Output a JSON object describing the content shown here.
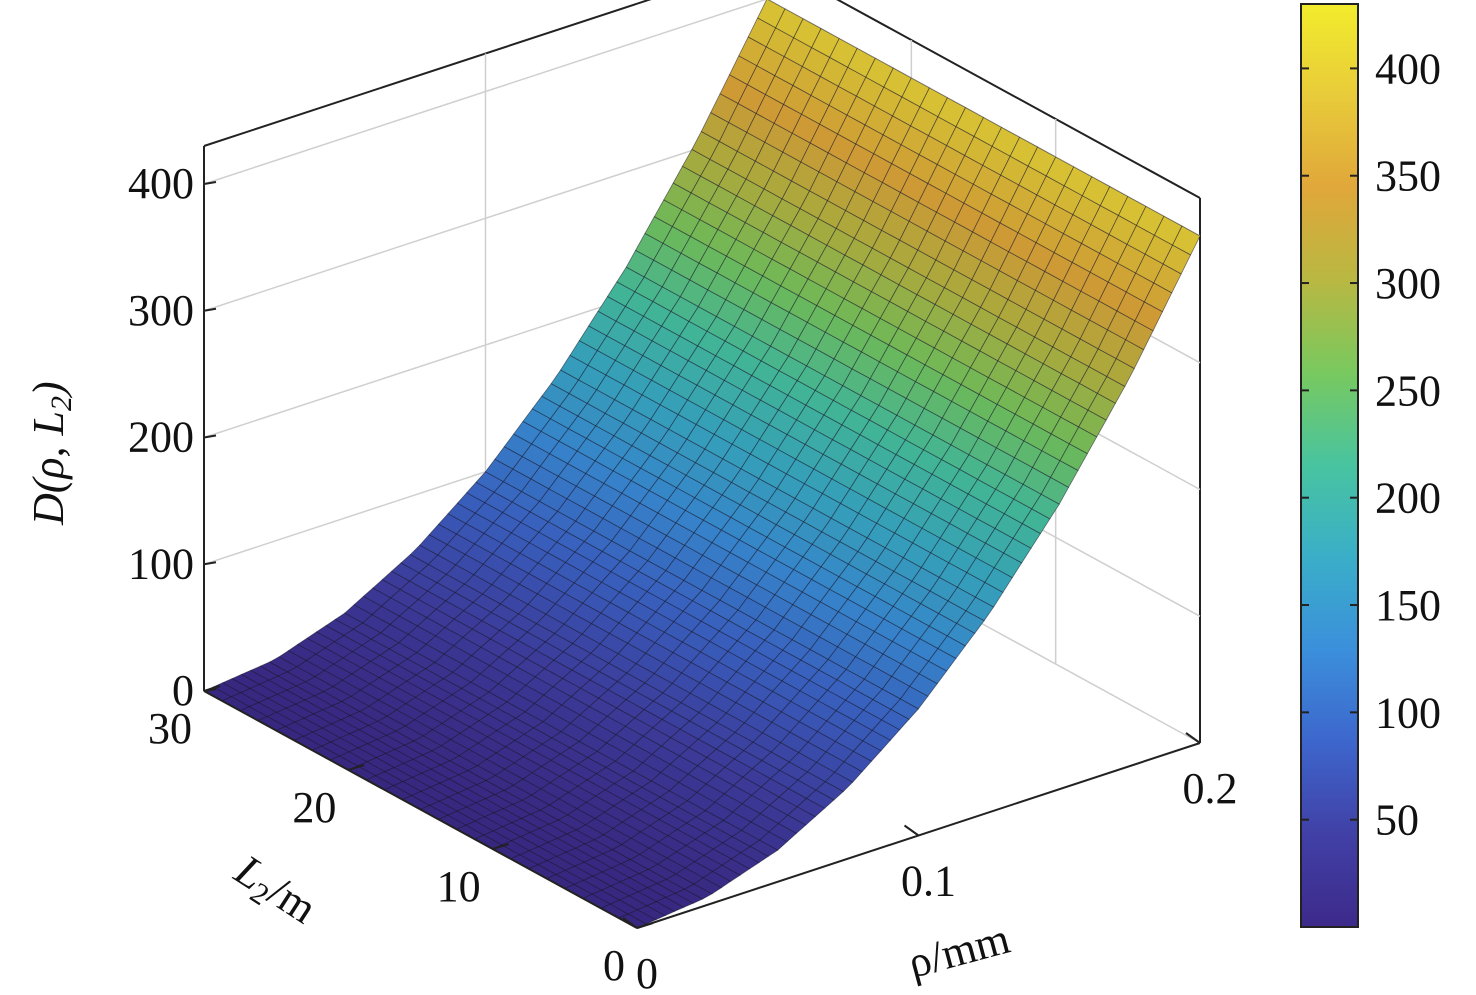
{
  "chart_data": {
    "type": "surface",
    "function": "D = 10000 * rho^2 (independent of L2)",
    "x": {
      "label_text": "ρ/mm",
      "range": [
        0,
        0.2
      ],
      "ticks": [
        0,
        0.1,
        0.2
      ],
      "tick_labels": [
        "0",
        "0.1",
        "0.2"
      ]
    },
    "y": {
      "label_main": "L",
      "label_sub": "2",
      "label_unit": "/m",
      "range": [
        0,
        30
      ],
      "ticks": [
        0,
        10,
        20,
        30
      ],
      "tick_labels": [
        "0",
        "10",
        "20",
        "30"
      ]
    },
    "z": {
      "label_main": "D(ρ, L",
      "label_sub": "2",
      "label_close": ")",
      "range": [
        0,
        430
      ],
      "ticks": [
        0,
        100,
        200,
        300,
        400
      ],
      "tick_labels": [
        "0",
        "100",
        "200",
        "300",
        "400"
      ]
    },
    "rho_samples": [
      0,
      0.025,
      0.05,
      0.075,
      0.1,
      0.125,
      0.15,
      0.175,
      0.2
    ],
    "D_values": [
      0,
      6.25,
      25,
      56.25,
      100,
      156.25,
      225,
      306.25,
      400
    ],
    "colorbar": {
      "range": [
        0,
        430
      ],
      "ticks": [
        50,
        100,
        150,
        200,
        250,
        300,
        350,
        400
      ],
      "tick_labels": [
        "50",
        "100",
        "150",
        "200",
        "250",
        "300",
        "350",
        "400"
      ],
      "colormap": [
        "#3d2a8a",
        "#4140a6",
        "#3d66cc",
        "#3b8fdb",
        "#3aaec8",
        "#48c4a0",
        "#78c95f",
        "#b8b842",
        "#e0a73a",
        "#e8cb3a",
        "#f2ec2c"
      ]
    },
    "grid": true,
    "legend": "colorbar-right"
  }
}
